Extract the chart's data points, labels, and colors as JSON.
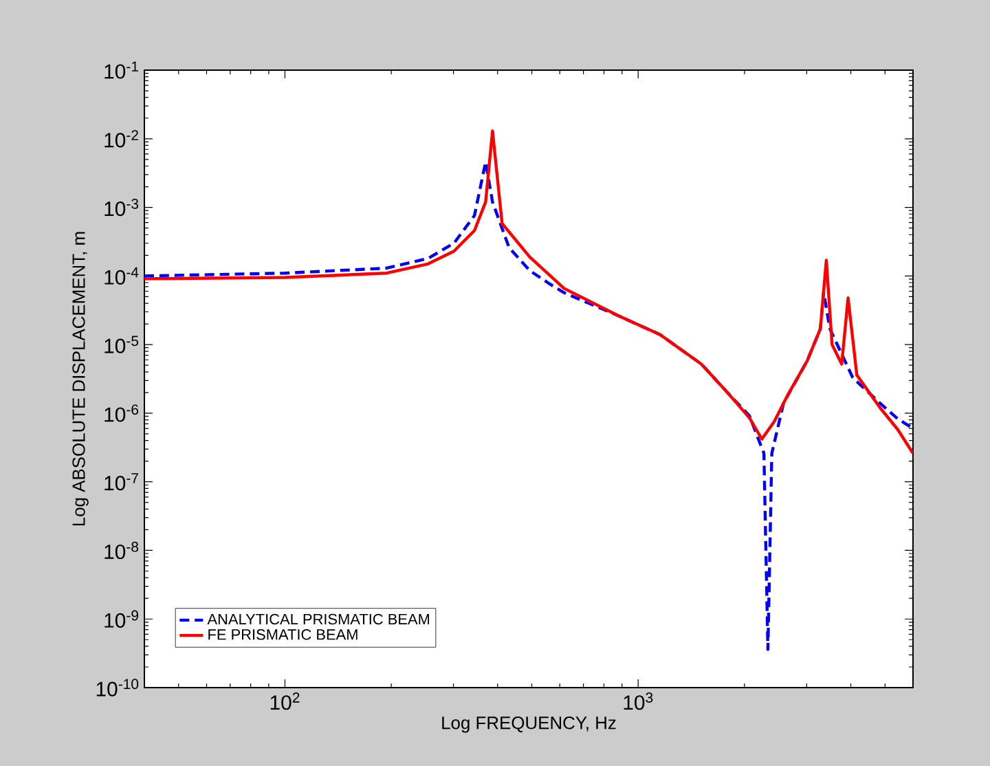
{
  "chart_data": {
    "type": "line",
    "xlabel": "Log FREQUENCY, Hz",
    "ylabel": "Log ABSOLUTE  DISPLACEMENT, m",
    "log": "xy",
    "grid": false,
    "legend": "bottom left",
    "marker": "none",
    "xlim": [
      40,
      6000
    ],
    "ylim": [
      1e-10,
      0.1
    ],
    "xticks": [
      {
        "value": 100,
        "label": "10$^{2}$"
      },
      {
        "value": 1000,
        "label": "10$^{3}$"
      }
    ],
    "yticks": [
      {
        "value": 1e-10,
        "label": "10$^{-10}$"
      },
      {
        "value": 1e-09,
        "label": "10$^{-9}$"
      },
      {
        "value": 1e-08,
        "label": "10$^{-8}$"
      },
      {
        "value": 1e-07,
        "label": "10$^{-7}$"
      },
      {
        "value": 1e-06,
        "label": "10$^{-6}$"
      },
      {
        "value": 1e-05,
        "label": "10$^{-5}$"
      },
      {
        "value": 0.0001,
        "label": "10$^{-4}$"
      },
      {
        "value": 0.001,
        "label": "10$^{-3}$"
      },
      {
        "value": 0.01,
        "label": "10$^{-2}$"
      },
      {
        "value": 0.1,
        "label": "10$^{-1}$"
      }
    ],
    "series": [
      {
        "name": "ANALYTICAL PRISMATIC BEAM",
        "color": "#0000ff",
        "line_style": "dashed",
        "x": [
          40,
          100,
          194,
          254,
          301,
          344,
          370,
          387,
          431,
          493,
          563,
          617,
          884,
          1153,
          1510,
          1806,
          2067,
          2270,
          2330,
          2390,
          2580,
          3010,
          3280,
          3350,
          3490,
          4050,
          4840,
          5430,
          6000
        ],
        "values": [
          0.0001,
          0.00011,
          0.00013,
          0.00018,
          0.0003,
          0.00076,
          0.0046,
          0.0012,
          0.00026,
          0.00012,
          7.6e-05,
          5.7e-05,
          2.6e-05,
          1.4e-05,
          5.2e-06,
          1.9e-06,
          9.1e-07,
          2.6e-07,
          3.6e-10,
          2.6e-07,
          1.4e-06,
          5.8e-06,
          1.7e-05,
          5.8e-05,
          1.7e-05,
          3.3e-06,
          1.4e-06,
          8.3e-07,
          6e-07
        ]
      },
      {
        "name": "FE PRISMATIC BEAM",
        "color": "#ff0000",
        "line_style": "solid",
        "x": [
          40,
          100,
          194,
          254,
          301,
          344,
          370,
          387,
          412,
          493,
          617,
          884,
          1153,
          1510,
          1806,
          2067,
          2240,
          2430,
          2660,
          3010,
          3280,
          3410,
          3540,
          3770,
          3930,
          4160,
          4840,
          5430,
          6000
        ],
        "values": [
          9.1e-05,
          9.5e-05,
          0.00011,
          0.00015,
          0.00023,
          0.00046,
          0.0012,
          0.013,
          0.00058,
          0.00019,
          6.6e-05,
          2.6e-05,
          1.4e-05,
          5.2e-06,
          1.9e-06,
          8.5e-07,
          4.2e-07,
          7.6e-07,
          1.9e-06,
          5.8e-06,
          1.7e-05,
          0.00017,
          1e-05,
          5.2e-06,
          4.8e-05,
          3.6e-06,
          1.2e-06,
          5.8e-07,
          2.6e-07
        ]
      }
    ]
  }
}
